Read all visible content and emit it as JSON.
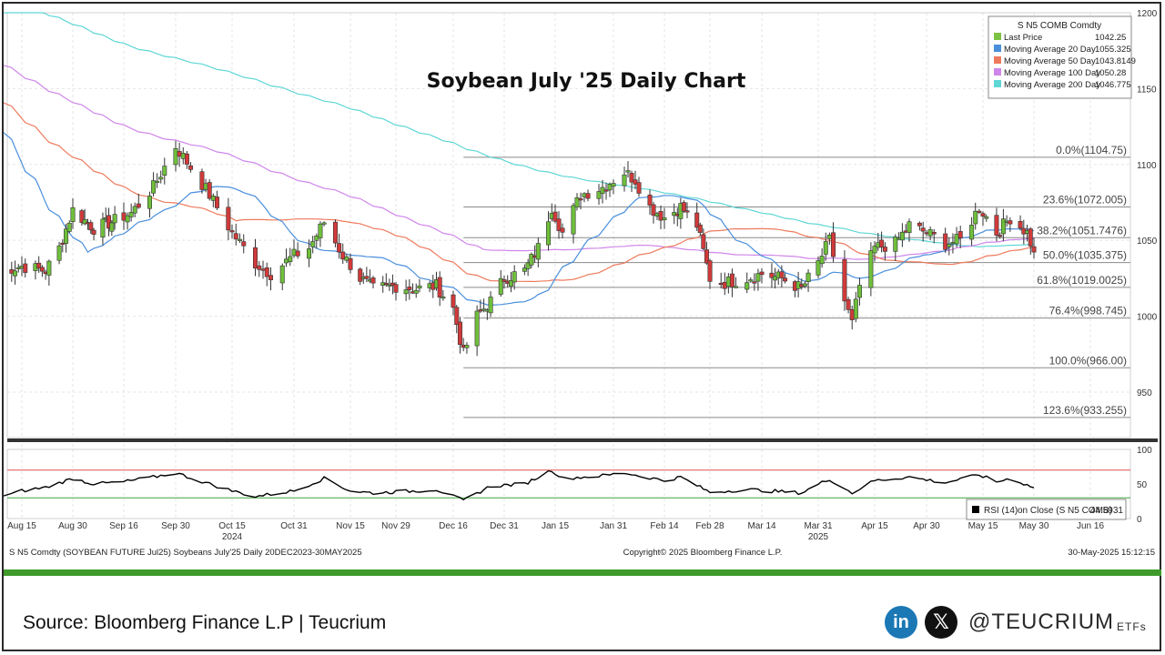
{
  "source_text": "Source: Bloomberg Finance L.P | Teucrium",
  "social": {
    "linkedin_glyph": "in",
    "x_glyph": "𝕏",
    "handle": "@TEUCRIUM",
    "etfs": "ETFs"
  },
  "footer": {
    "left": "S N5 Comdty (SOYBEAN FUTURE   Jul25) Soybeans July'25  Daily 20DEC2023-30MAY2025",
    "center": "Copyright© 2025 Bloomberg Finance L.P.",
    "right": "30-May-2025 15:12:15"
  },
  "chart_data": [
    {
      "type": "candlestick",
      "title": "Soybean July '25 Daily Chart",
      "ylim": [
        920,
        1200
      ],
      "yticks": [
        950,
        1000,
        1050,
        1100,
        1150,
        1200
      ],
      "xticks": [
        "Aug 15",
        "Aug 30",
        "Sep 16",
        "Sep 30",
        "Oct 15",
        "Oct 31",
        "Nov 15",
        "Nov 29",
        "Dec 16",
        "Dec 31",
        "Jan 15",
        "Jan 31",
        "Feb 14",
        "Feb 28",
        "Mar 14",
        "Mar 31",
        "Apr 15",
        "Apr 30",
        "May 15",
        "May 30",
        "Jun 16"
      ],
      "year_labels": [
        {
          "text": "2024",
          "at": "Oct 15"
        },
        {
          "text": "2025",
          "at": "Mar 31"
        }
      ],
      "legend": {
        "title": "S N5 COMB Comdty",
        "position": "top-right",
        "entries": [
          {
            "name": "Last Price",
            "value": "1042.25",
            "color": "#7cc243"
          },
          {
            "name": "Moving Average 20 Day",
            "value": "1055.325",
            "color": "#4a8fdc"
          },
          {
            "name": "Moving Average 50 Day",
            "value": "1043.8149",
            "color": "#ee7a5c"
          },
          {
            "name": "Moving Average 100 Day",
            "value": "1050.28",
            "color": "#cf86ea"
          },
          {
            "name": "Moving Average 200 Day",
            "value": "1046.775",
            "color": "#5fd6d6"
          }
        ]
      },
      "fib_levels": [
        {
          "label": "0.0%(1104.75)",
          "value": 1104.75
        },
        {
          "label": "23.6%(1072.005)",
          "value": 1072.005
        },
        {
          "label": "38.2%(1051.7476)",
          "value": 1051.7476
        },
        {
          "label": "50.0%(1035.375)",
          "value": 1035.375
        },
        {
          "label": "61.8%(1019.0025)",
          "value": 1019.0025
        },
        {
          "label": "76.4%(998.745)",
          "value": 998.745
        },
        {
          "label": "100.0%(966.00)",
          "value": 966.0
        },
        {
          "label": "123.6%(933.255)",
          "value": 933.255
        }
      ],
      "close_anchors": [
        [
          "Aug 8",
          1030
        ],
        [
          "Aug 15",
          1033
        ],
        [
          "Aug 22",
          1030
        ],
        [
          "Aug 26",
          1045
        ],
        [
          "Aug 30",
          1070
        ],
        [
          "Sep 6",
          1058
        ],
        [
          "Sep 12",
          1062
        ],
        [
          "Sep 18",
          1068
        ],
        [
          "Sep 24",
          1085
        ],
        [
          "Sep 30",
          1112
        ],
        [
          "Oct 4",
          1098
        ],
        [
          "Oct 9",
          1080
        ],
        [
          "Oct 15",
          1055
        ],
        [
          "Oct 21",
          1035
        ],
        [
          "Oct 25",
          1028
        ],
        [
          "Oct 31",
          1040
        ],
        [
          "Nov 4",
          1045
        ],
        [
          "Nov 8",
          1062
        ],
        [
          "Nov 13",
          1040
        ],
        [
          "Nov 18",
          1025
        ],
        [
          "Nov 22",
          1018
        ],
        [
          "Nov 29",
          1020
        ],
        [
          "Dec 5",
          1018
        ],
        [
          "Dec 11",
          1020
        ],
        [
          "Dec 16",
          1005
        ],
        [
          "Dec 19",
          975
        ],
        [
          "Dec 23",
          1000
        ],
        [
          "Dec 27",
          1010
        ],
        [
          "Dec 31",
          1025
        ],
        [
          "Jan 6",
          1030
        ],
        [
          "Jan 10",
          1045
        ],
        [
          "Jan 14",
          1072
        ],
        [
          "Jan 17",
          1055
        ],
        [
          "Jan 22",
          1080
        ],
        [
          "Jan 28",
          1085
        ],
        [
          "Feb 3",
          1095
        ],
        [
          "Feb 6",
          1090
        ],
        [
          "Feb 10",
          1072
        ],
        [
          "Feb 14",
          1065
        ],
        [
          "Feb 19",
          1072
        ],
        [
          "Feb 24",
          1060
        ],
        [
          "Feb 28",
          1025
        ],
        [
          "Mar 4",
          1022
        ],
        [
          "Mar 10",
          1025
        ],
        [
          "Mar 14",
          1028
        ],
        [
          "Mar 20",
          1025
        ],
        [
          "Mar 26",
          1018
        ],
        [
          "Mar 31",
          1035
        ],
        [
          "Apr 3",
          1050
        ],
        [
          "Apr 7",
          1010
        ],
        [
          "Apr 9",
          995
        ],
        [
          "Apr 11",
          1020
        ],
        [
          "Apr 15",
          1045
        ],
        [
          "Apr 21",
          1048
        ],
        [
          "Apr 25",
          1060
        ],
        [
          "Apr 30",
          1055
        ],
        [
          "May 5",
          1048
        ],
        [
          "May 9",
          1050
        ],
        [
          "May 14",
          1072
        ],
        [
          "May 19",
          1055
        ],
        [
          "May 23",
          1065
        ],
        [
          "May 28",
          1055
        ],
        [
          "May 30",
          1042.25
        ]
      ]
    },
    {
      "type": "line",
      "title": "",
      "ylim": [
        0,
        100
      ],
      "yticks": [
        0,
        50,
        100
      ],
      "legend": {
        "name": "RSI (14)",
        "note": "on Close (S N5 COMB)",
        "value": "44.5931",
        "position": "bottom-right"
      },
      "bands": [
        {
          "value": 70,
          "color": "#e05050"
        },
        {
          "value": 30,
          "color": "#3ba53b"
        }
      ],
      "rsi_anchors": [
        [
          "Aug 8",
          32
        ],
        [
          "Aug 15",
          40
        ],
        [
          "Aug 22",
          45
        ],
        [
          "Aug 30",
          58
        ],
        [
          "Sep 6",
          50
        ],
        [
          "Sep 16",
          53
        ],
        [
          "Sep 24",
          60
        ],
        [
          "Sep 30",
          66
        ],
        [
          "Oct 9",
          50
        ],
        [
          "Oct 15",
          40
        ],
        [
          "Oct 21",
          32
        ],
        [
          "Oct 31",
          40
        ],
        [
          "Nov 8",
          58
        ],
        [
          "Nov 15",
          40
        ],
        [
          "Nov 22",
          37
        ],
        [
          "Dec 5",
          40
        ],
        [
          "Dec 11",
          42
        ],
        [
          "Dec 19",
          26
        ],
        [
          "Dec 27",
          47
        ],
        [
          "Jan 6",
          50
        ],
        [
          "Jan 14",
          70
        ],
        [
          "Jan 17",
          58
        ],
        [
          "Jan 28",
          62
        ],
        [
          "Feb 3",
          66
        ],
        [
          "Feb 14",
          55
        ],
        [
          "Feb 19",
          60
        ],
        [
          "Feb 28",
          38
        ],
        [
          "Mar 10",
          42
        ],
        [
          "Mar 26",
          37
        ],
        [
          "Apr 3",
          57
        ],
        [
          "Apr 9",
          37
        ],
        [
          "Apr 15",
          55
        ],
        [
          "Apr 25",
          60
        ],
        [
          "May 5",
          52
        ],
        [
          "May 14",
          63
        ],
        [
          "May 19",
          53
        ],
        [
          "May 23",
          58
        ],
        [
          "May 30",
          44.59
        ]
      ]
    }
  ]
}
